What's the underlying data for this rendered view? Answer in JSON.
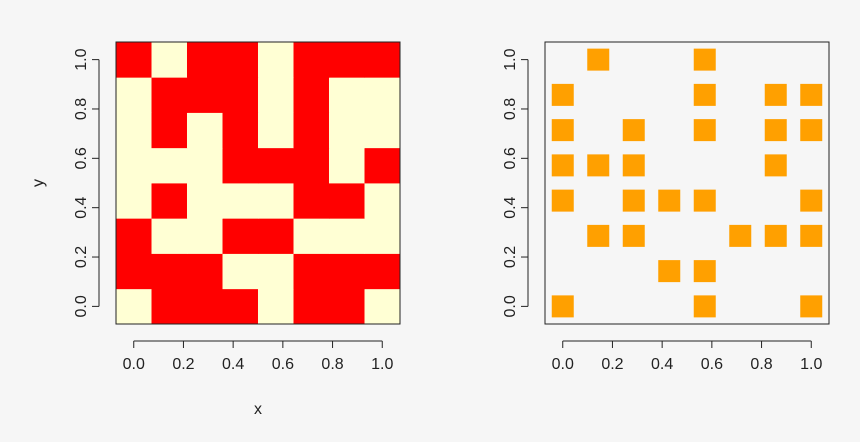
{
  "colors": {
    "background": "#f6f6f6",
    "heatmap_high": "#ff0000",
    "heatmap_low": "#ffffd4",
    "marker": "#ffa000",
    "axis": "#222222"
  },
  "chart_data": [
    {
      "type": "heatmap",
      "xlabel": "x",
      "ylabel": "y",
      "xlim": [
        -0.0714,
        1.0714
      ],
      "ylim": [
        -0.0714,
        1.0714
      ],
      "x_ticks": [
        "0.0",
        "0.2",
        "0.4",
        "0.6",
        "0.8",
        "1.0"
      ],
      "y_ticks": [
        "0.0",
        "0.2",
        "0.4",
        "0.6",
        "0.8",
        "1.0"
      ],
      "grid": false,
      "x_values": [
        0,
        0.1429,
        0.2857,
        0.4286,
        0.5714,
        0.7143,
        0.8571,
        1
      ],
      "y_values": [
        0,
        0.1429,
        0.2857,
        0.4286,
        0.5714,
        0.7143,
        0.8571,
        1
      ],
      "values_rows_bottom_to_top": [
        [
          0,
          1,
          1,
          1,
          0,
          1,
          1,
          0
        ],
        [
          1,
          1,
          1,
          0,
          0,
          1,
          1,
          1
        ],
        [
          1,
          0,
          0,
          1,
          1,
          0,
          0,
          0
        ],
        [
          0,
          1,
          0,
          0,
          0,
          1,
          1,
          0
        ],
        [
          0,
          0,
          0,
          1,
          1,
          1,
          0,
          1
        ],
        [
          0,
          1,
          0,
          1,
          0,
          1,
          0,
          0
        ],
        [
          0,
          1,
          1,
          1,
          0,
          1,
          0,
          0
        ],
        [
          1,
          0,
          1,
          1,
          0,
          1,
          1,
          1
        ]
      ]
    },
    {
      "type": "scatter",
      "xlabel": "",
      "ylabel": "",
      "xlim": [
        -0.0714,
        1.0714
      ],
      "ylim": [
        -0.0714,
        1.0714
      ],
      "x_ticks": [
        "0.0",
        "0.2",
        "0.4",
        "0.6",
        "0.8",
        "1.0"
      ],
      "y_ticks": [
        "0.0",
        "0.2",
        "0.4",
        "0.6",
        "0.8",
        "1.0"
      ],
      "grid": false,
      "marker": "square",
      "points": [
        {
          "x": 0,
          "y": 0
        },
        {
          "x": 0.5714,
          "y": 0
        },
        {
          "x": 1,
          "y": 0
        },
        {
          "x": 0.4286,
          "y": 0.1429
        },
        {
          "x": 0.5714,
          "y": 0.1429
        },
        {
          "x": 0.1429,
          "y": 0.2857
        },
        {
          "x": 0.2857,
          "y": 0.2857
        },
        {
          "x": 0.7143,
          "y": 0.2857
        },
        {
          "x": 0.8571,
          "y": 0.2857
        },
        {
          "x": 1,
          "y": 0.2857
        },
        {
          "x": 0,
          "y": 0.4286
        },
        {
          "x": 0.2857,
          "y": 0.4286
        },
        {
          "x": 0.4286,
          "y": 0.4286
        },
        {
          "x": 0.5714,
          "y": 0.4286
        },
        {
          "x": 1,
          "y": 0.4286
        },
        {
          "x": 0,
          "y": 0.5714
        },
        {
          "x": 0.1429,
          "y": 0.5714
        },
        {
          "x": 0.2857,
          "y": 0.5714
        },
        {
          "x": 0.8571,
          "y": 0.5714
        },
        {
          "x": 0,
          "y": 0.7143
        },
        {
          "x": 0.2857,
          "y": 0.7143
        },
        {
          "x": 0.5714,
          "y": 0.7143
        },
        {
          "x": 0.8571,
          "y": 0.7143
        },
        {
          "x": 1,
          "y": 0.7143
        },
        {
          "x": 0,
          "y": 0.8571
        },
        {
          "x": 0.5714,
          "y": 0.8571
        },
        {
          "x": 0.8571,
          "y": 0.8571
        },
        {
          "x": 1,
          "y": 0.8571
        },
        {
          "x": 0.1429,
          "y": 1
        },
        {
          "x": 0.5714,
          "y": 1
        }
      ]
    }
  ]
}
